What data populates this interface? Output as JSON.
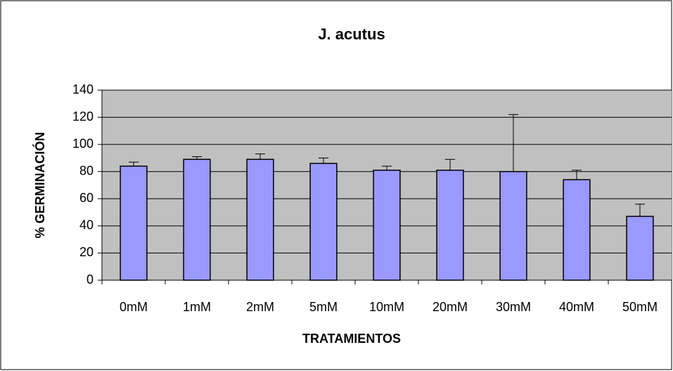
{
  "chart_data": {
    "type": "bar",
    "title": "J. acutus",
    "x_label": "TRATAMIENTOS",
    "y_label": "% GERMINACIÓN",
    "categories": [
      "0mM",
      "1mM",
      "2mM",
      "5mM",
      "10mM",
      "20mM",
      "30mM",
      "40mM",
      "50mM"
    ],
    "values": [
      84,
      89,
      89,
      86,
      81,
      81,
      80,
      74,
      47
    ],
    "errors": [
      3,
      2,
      4,
      4,
      3,
      8,
      42,
      7,
      9
    ],
    "color": "#9999ff",
    "ylim": [
      0,
      140
    ],
    "yticks": [
      0,
      20,
      40,
      60,
      80,
      100,
      120,
      140
    ],
    "grid": true
  }
}
